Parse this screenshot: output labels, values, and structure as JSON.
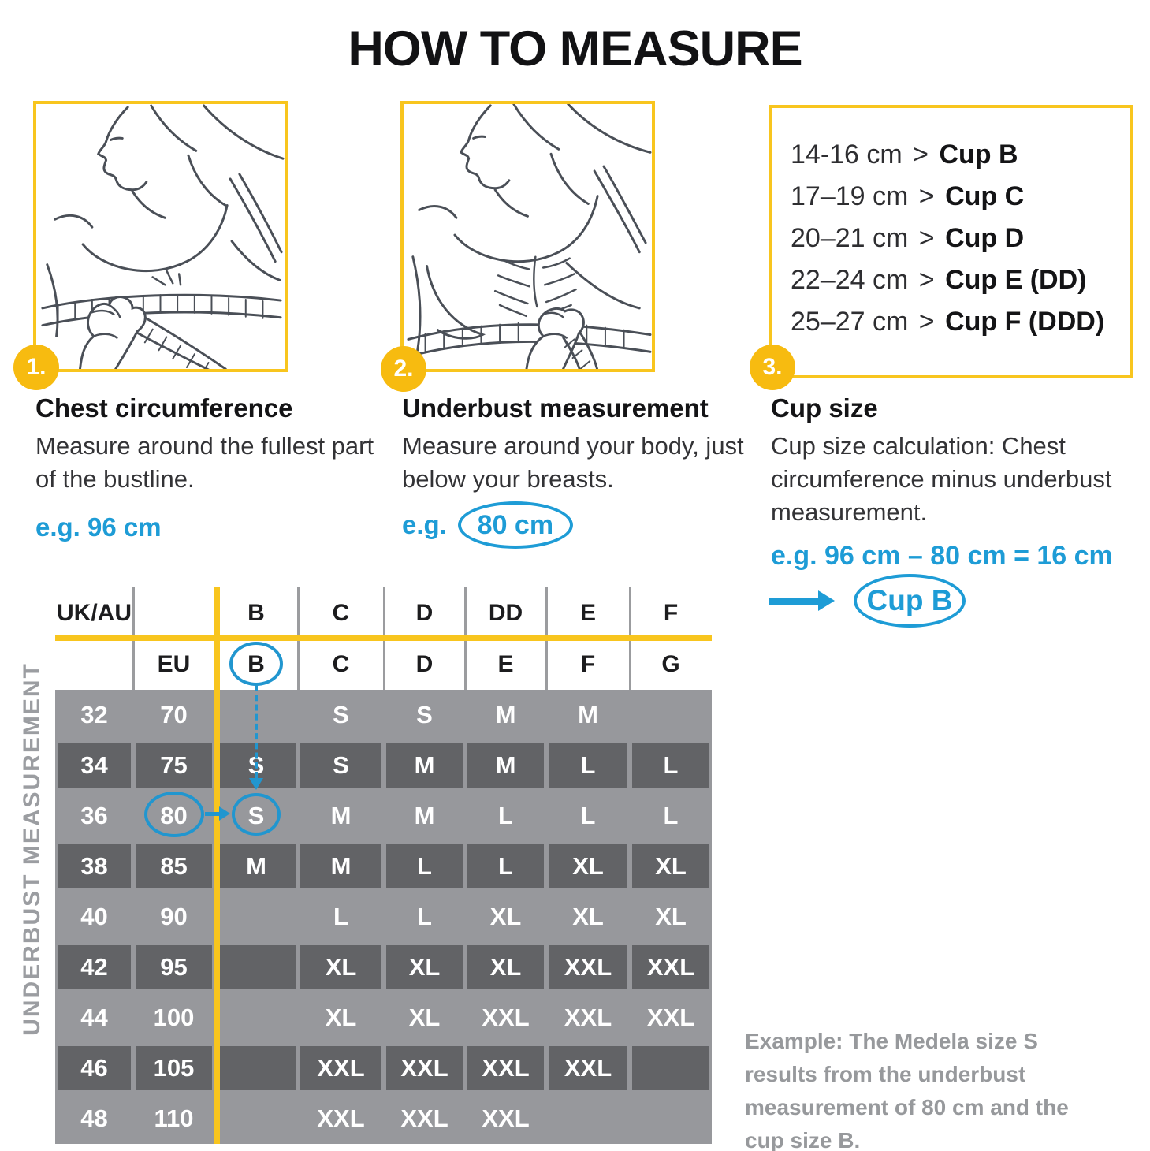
{
  "title": "HOW TO MEASURE",
  "steps": [
    {
      "number": "1.",
      "heading": "Chest circumference",
      "body": "Measure around the fullest part of the bustline.",
      "example": "e.g. 96 cm"
    },
    {
      "number": "2.",
      "heading": "Underbust measurement",
      "body": "Measure around your body, just below your breasts.",
      "example_prefix": "e.g.",
      "example_circled": "80 cm"
    },
    {
      "number": "3.",
      "heading": "Cup size",
      "body": "Cup size calculation: Chest circumference minus underbust measurement.",
      "example": "e.g. 96 cm – 80 cm = 16 cm",
      "result_circled": "Cup B"
    }
  ],
  "cup_chart": {
    "separator": ">",
    "lines": [
      {
        "range": "14-16 cm",
        "cup": "Cup B"
      },
      {
        "range": "17–19 cm",
        "cup": "Cup C"
      },
      {
        "range": "20–21 cm",
        "cup": "Cup D"
      },
      {
        "range": "22–24 cm",
        "cup": "Cup E (DD)"
      },
      {
        "range": "25–27 cm",
        "cup": "Cup F (DDD)"
      }
    ]
  },
  "size_table": {
    "left_axis_label": "UNDERBUST MEASUREMENT",
    "header_row1": [
      "UK/AU",
      "",
      "B",
      "C",
      "D",
      "DD",
      "E",
      "F"
    ],
    "header_row2": [
      "",
      "EU",
      "B",
      "C",
      "D",
      "E",
      "F",
      "G"
    ],
    "rows": [
      {
        "ukau": "32",
        "eu": "70",
        "sizes": [
          "",
          "S",
          "S",
          "M",
          "M",
          ""
        ],
        "shade": "light"
      },
      {
        "ukau": "34",
        "eu": "75",
        "sizes": [
          "S",
          "S",
          "M",
          "M",
          "L",
          "L"
        ],
        "shade": "dark"
      },
      {
        "ukau": "36",
        "eu": "80",
        "sizes": [
          "S",
          "M",
          "M",
          "L",
          "L",
          "L"
        ],
        "shade": "light",
        "highlight": true
      },
      {
        "ukau": "38",
        "eu": "85",
        "sizes": [
          "M",
          "M",
          "L",
          "L",
          "XL",
          "XL"
        ],
        "shade": "dark"
      },
      {
        "ukau": "40",
        "eu": "90",
        "sizes": [
          "",
          "L",
          "L",
          "XL",
          "XL",
          "XL"
        ],
        "shade": "light"
      },
      {
        "ukau": "42",
        "eu": "95",
        "sizes": [
          "",
          "XL",
          "XL",
          "XL",
          "XXL",
          "XXL"
        ],
        "shade": "dark"
      },
      {
        "ukau": "44",
        "eu": "100",
        "sizes": [
          "",
          "XL",
          "XL",
          "XXL",
          "XXL",
          "XXL"
        ],
        "shade": "light"
      },
      {
        "ukau": "46",
        "eu": "105",
        "sizes": [
          "",
          "XXL",
          "XXL",
          "XXL",
          "XXL",
          ""
        ],
        "shade": "dark"
      },
      {
        "ukau": "48",
        "eu": "110",
        "sizes": [
          "",
          "XXL",
          "XXL",
          "XXL",
          "",
          ""
        ],
        "shade": "light"
      }
    ]
  },
  "example_note": "Example: The Medela size S results from the underbust measurement of 80 cm and the cup size B.",
  "colors": {
    "accent_yellow": "#F8C51E",
    "badge_yellow": "#F7BB10",
    "accent_blue": "#1E9CD6",
    "table_row_light": "#97989C",
    "table_row_dark": "#626366",
    "note_gray": "#97999C"
  }
}
